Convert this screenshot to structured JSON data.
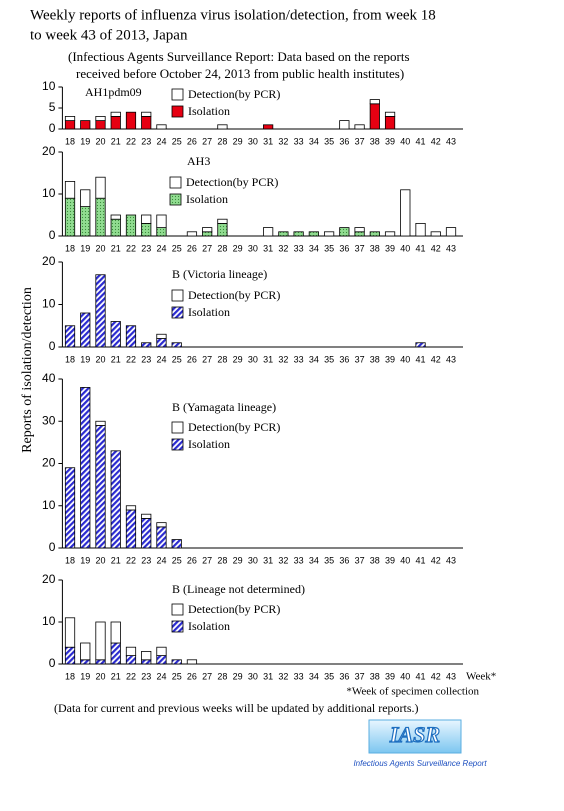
{
  "title": [
    "Weekly reports of influenza virus isolation/detection, from week 18",
    "to week 43 of 2013, Japan"
  ],
  "subtitle": [
    "(Infectious Agents Surveillance Report: Data based on the reports",
    "received before October 24, 2013 from public health institutes)"
  ],
  "y_label": "Reports of isolation/detection",
  "x_label": "Week*",
  "footnote": "*Week of specimen collection",
  "note": "(Data for current and previous weeks will be updated  by additional reports.)",
  "logo": {
    "title": "IASR",
    "subtitle": "Infectious Agents Surveillance Report"
  },
  "chart_data": [
    {
      "type": "bar",
      "stacked": true,
      "label": "AH1pdm09",
      "categories": [
        "18",
        "19",
        "20",
        "21",
        "22",
        "23",
        "24",
        "25",
        "26",
        "27",
        "28",
        "29",
        "30",
        "31",
        "32",
        "33",
        "34",
        "35",
        "36",
        "37",
        "38",
        "39",
        "40",
        "41",
        "42",
        "43"
      ],
      "ylim": [
        0,
        10
      ],
      "yticks": [
        0,
        5,
        10
      ],
      "series": [
        {
          "name": "Isolation",
          "color": "#e60012",
          "pattern": "solid",
          "values": [
            2,
            2,
            2,
            3,
            4,
            3,
            0,
            0,
            0,
            0,
            0,
            0,
            0,
            1,
            0,
            0,
            0,
            0,
            0,
            0,
            6,
            3,
            0,
            0,
            0,
            0
          ]
        },
        {
          "name": "Detection(by PCR)",
          "color": "#ffffff",
          "pattern": "solid",
          "values": [
            1,
            0,
            1,
            1,
            0,
            1,
            1,
            0,
            0,
            0,
            1,
            0,
            0,
            0,
            0,
            0,
            0,
            0,
            2,
            1,
            1,
            1,
            0,
            0,
            0,
            0
          ]
        }
      ]
    },
    {
      "type": "bar",
      "stacked": true,
      "label": "AH3",
      "categories": [
        "18",
        "19",
        "20",
        "21",
        "22",
        "23",
        "24",
        "25",
        "26",
        "27",
        "28",
        "29",
        "30",
        "31",
        "32",
        "33",
        "34",
        "35",
        "36",
        "37",
        "38",
        "39",
        "40",
        "41",
        "42",
        "43"
      ],
      "ylim": [
        0,
        20
      ],
      "yticks": [
        0,
        10,
        20
      ],
      "series": [
        {
          "name": "Isolation",
          "color": "#90dc90",
          "pattern": "dots",
          "values": [
            9,
            7,
            9,
            4,
            5,
            3,
            2,
            0,
            0,
            1,
            3,
            0,
            0,
            0,
            1,
            1,
            1,
            0,
            2,
            1,
            1,
            0,
            0,
            0,
            0,
            0
          ]
        },
        {
          "name": "Detection(by PCR)",
          "color": "#ffffff",
          "pattern": "solid",
          "values": [
            4,
            4,
            5,
            1,
            0,
            2,
            3,
            0,
            1,
            1,
            1,
            0,
            0,
            2,
            0,
            0,
            0,
            1,
            0,
            1,
            0,
            1,
            11,
            3,
            1,
            2
          ]
        }
      ]
    },
    {
      "type": "bar",
      "stacked": true,
      "label": "B (Victoria lineage)",
      "categories": [
        "18",
        "19",
        "20",
        "21",
        "22",
        "23",
        "24",
        "25",
        "26",
        "27",
        "28",
        "29",
        "30",
        "31",
        "32",
        "33",
        "34",
        "35",
        "36",
        "37",
        "38",
        "39",
        "40",
        "41",
        "42",
        "43"
      ],
      "ylim": [
        0,
        20
      ],
      "yticks": [
        0,
        10,
        20
      ],
      "series": [
        {
          "name": "Isolation",
          "color": "#2a2ad0",
          "pattern": "hatch",
          "values": [
            5,
            8,
            17,
            6,
            5,
            1,
            2,
            1,
            0,
            0,
            0,
            0,
            0,
            0,
            0,
            0,
            0,
            0,
            0,
            0,
            0,
            0,
            0,
            1,
            0,
            0
          ]
        },
        {
          "name": "Detection(by PCR)",
          "color": "#ffffff",
          "pattern": "solid",
          "values": [
            0,
            0,
            0,
            0,
            0,
            0,
            1,
            0,
            0,
            0,
            0,
            0,
            0,
            0,
            0,
            0,
            0,
            0,
            0,
            0,
            0,
            0,
            0,
            0,
            0,
            0
          ]
        }
      ]
    },
    {
      "type": "bar",
      "stacked": true,
      "label": "B (Yamagata lineage)",
      "categories": [
        "18",
        "19",
        "20",
        "21",
        "22",
        "23",
        "24",
        "25",
        "26",
        "27",
        "28",
        "29",
        "30",
        "31",
        "32",
        "33",
        "34",
        "35",
        "36",
        "37",
        "38",
        "39",
        "40",
        "41",
        "42",
        "43"
      ],
      "ylim": [
        0,
        40
      ],
      "yticks": [
        0,
        10,
        20,
        30,
        40
      ],
      "series": [
        {
          "name": "Isolation",
          "color": "#2a2ad0",
          "pattern": "hatch",
          "values": [
            19,
            38,
            29,
            23,
            9,
            7,
            5,
            2,
            0,
            0,
            0,
            0,
            0,
            0,
            0,
            0,
            0,
            0,
            0,
            0,
            0,
            0,
            0,
            0,
            0,
            0
          ]
        },
        {
          "name": "Detection(by PCR)",
          "color": "#ffffff",
          "pattern": "solid",
          "values": [
            0,
            0,
            1,
            0,
            1,
            1,
            1,
            0,
            0,
            0,
            0,
            0,
            0,
            0,
            0,
            0,
            0,
            0,
            0,
            0,
            0,
            0,
            0,
            0,
            0,
            0
          ]
        }
      ]
    },
    {
      "type": "bar",
      "stacked": true,
      "label": "B (Lineage not determined)",
      "categories": [
        "18",
        "19",
        "20",
        "21",
        "22",
        "23",
        "24",
        "25",
        "26",
        "27",
        "28",
        "29",
        "30",
        "31",
        "32",
        "33",
        "34",
        "35",
        "36",
        "37",
        "38",
        "39",
        "40",
        "41",
        "42",
        "43"
      ],
      "ylim": [
        0,
        20
      ],
      "yticks": [
        0,
        10,
        20
      ],
      "series": [
        {
          "name": "Isolation",
          "color": "#2a2ad0",
          "pattern": "hatch",
          "values": [
            4,
            1,
            1,
            5,
            2,
            1,
            2,
            1,
            0,
            0,
            0,
            0,
            0,
            0,
            0,
            0,
            0,
            0,
            0,
            0,
            0,
            0,
            0,
            0,
            0,
            0
          ]
        },
        {
          "name": "Detection(by PCR)",
          "color": "#ffffff",
          "pattern": "solid",
          "values": [
            7,
            4,
            9,
            5,
            2,
            2,
            2,
            0,
            1,
            0,
            0,
            0,
            0,
            0,
            0,
            0,
            0,
            0,
            0,
            0,
            0,
            0,
            0,
            0,
            0,
            0
          ]
        }
      ]
    }
  ]
}
